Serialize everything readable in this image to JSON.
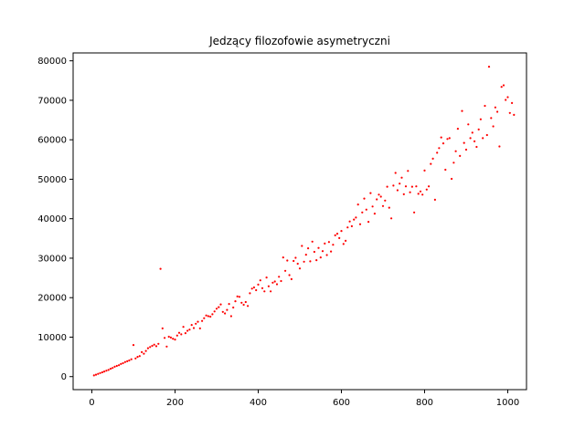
{
  "chart_data": {
    "type": "scatter",
    "title": "Jedzący filozofowie asymetryczni",
    "xlabel": "",
    "ylabel": "",
    "xlim": [
      -45,
      1045
    ],
    "ylim": [
      -3300,
      82000
    ],
    "xticks": [
      0,
      200,
      400,
      600,
      800,
      1000
    ],
    "yticks": [
      0,
      10000,
      20000,
      30000,
      40000,
      50000,
      60000,
      70000,
      80000
    ],
    "point_color": "#ff0000",
    "grid": false,
    "legend": "none",
    "series": [
      {
        "points": [
          [
            5,
            300
          ],
          [
            10,
            500
          ],
          [
            15,
            700
          ],
          [
            20,
            900
          ],
          [
            25,
            1100
          ],
          [
            30,
            1300
          ],
          [
            35,
            1500
          ],
          [
            40,
            1700
          ],
          [
            45,
            2000
          ],
          [
            50,
            2200
          ],
          [
            55,
            2500
          ],
          [
            60,
            2700
          ],
          [
            65,
            2900
          ],
          [
            70,
            3200
          ],
          [
            75,
            3400
          ],
          [
            80,
            3700
          ],
          [
            85,
            3900
          ],
          [
            90,
            4100
          ],
          [
            95,
            4400
          ],
          [
            100,
            8000
          ],
          [
            105,
            4600
          ],
          [
            110,
            5000
          ],
          [
            115,
            5200
          ],
          [
            120,
            6200
          ],
          [
            125,
            5800
          ],
          [
            130,
            6500
          ],
          [
            135,
            7200
          ],
          [
            140,
            7500
          ],
          [
            145,
            7800
          ],
          [
            150,
            8100
          ],
          [
            155,
            7700
          ],
          [
            160,
            8300
          ],
          [
            165,
            27300
          ],
          [
            170,
            12200
          ],
          [
            175,
            9800
          ],
          [
            180,
            7600
          ],
          [
            185,
            10100
          ],
          [
            190,
            9900
          ],
          [
            195,
            9600
          ],
          [
            200,
            9400
          ],
          [
            205,
            10400
          ],
          [
            210,
            11100
          ],
          [
            215,
            10700
          ],
          [
            220,
            12600
          ],
          [
            225,
            11000
          ],
          [
            230,
            11600
          ],
          [
            235,
            11900
          ],
          [
            240,
            13100
          ],
          [
            245,
            12300
          ],
          [
            250,
            13400
          ],
          [
            255,
            13900
          ],
          [
            260,
            12200
          ],
          [
            265,
            14100
          ],
          [
            270,
            14800
          ],
          [
            275,
            15500
          ],
          [
            280,
            15300
          ],
          [
            285,
            15200
          ],
          [
            290,
            15800
          ],
          [
            295,
            16500
          ],
          [
            300,
            17200
          ],
          [
            305,
            17600
          ],
          [
            310,
            18300
          ],
          [
            315,
            16400
          ],
          [
            320,
            16000
          ],
          [
            325,
            16900
          ],
          [
            330,
            18400
          ],
          [
            335,
            15300
          ],
          [
            340,
            17500
          ],
          [
            345,
            19100
          ],
          [
            350,
            20300
          ],
          [
            355,
            20200
          ],
          [
            360,
            18700
          ],
          [
            365,
            18200
          ],
          [
            370,
            18900
          ],
          [
            375,
            17900
          ],
          [
            380,
            21100
          ],
          [
            385,
            22300
          ],
          [
            390,
            22600
          ],
          [
            395,
            21900
          ],
          [
            400,
            23300
          ],
          [
            405,
            24400
          ],
          [
            410,
            22400
          ],
          [
            415,
            21600
          ],
          [
            420,
            25100
          ],
          [
            425,
            22900
          ],
          [
            430,
            21600
          ],
          [
            435,
            23800
          ],
          [
            440,
            24100
          ],
          [
            445,
            23400
          ],
          [
            450,
            25300
          ],
          [
            455,
            24200
          ],
          [
            460,
            30200
          ],
          [
            465,
            26800
          ],
          [
            470,
            29400
          ],
          [
            475,
            25700
          ],
          [
            480,
            24700
          ],
          [
            485,
            29300
          ],
          [
            490,
            30100
          ],
          [
            495,
            28600
          ],
          [
            500,
            27400
          ],
          [
            505,
            33100
          ],
          [
            510,
            29100
          ],
          [
            515,
            30900
          ],
          [
            520,
            32500
          ],
          [
            525,
            29200
          ],
          [
            530,
            34200
          ],
          [
            535,
            31600
          ],
          [
            540,
            29500
          ],
          [
            545,
            32600
          ],
          [
            550,
            30200
          ],
          [
            555,
            31800
          ],
          [
            560,
            33700
          ],
          [
            565,
            30800
          ],
          [
            570,
            34100
          ],
          [
            575,
            31700
          ],
          [
            580,
            33400
          ],
          [
            585,
            35800
          ],
          [
            590,
            36200
          ],
          [
            595,
            35100
          ],
          [
            600,
            36900
          ],
          [
            605,
            33600
          ],
          [
            610,
            34400
          ],
          [
            615,
            37800
          ],
          [
            620,
            39300
          ],
          [
            625,
            38100
          ],
          [
            630,
            39800
          ],
          [
            635,
            40300
          ],
          [
            640,
            43600
          ],
          [
            645,
            38600
          ],
          [
            650,
            41600
          ],
          [
            655,
            45100
          ],
          [
            660,
            42300
          ],
          [
            665,
            39200
          ],
          [
            670,
            46500
          ],
          [
            675,
            43100
          ],
          [
            680,
            41300
          ],
          [
            685,
            44900
          ],
          [
            690,
            46100
          ],
          [
            695,
            45600
          ],
          [
            700,
            43200
          ],
          [
            705,
            44600
          ],
          [
            710,
            48100
          ],
          [
            715,
            42800
          ],
          [
            720,
            40100
          ],
          [
            725,
            48400
          ],
          [
            730,
            51600
          ],
          [
            735,
            47200
          ],
          [
            740,
            48900
          ],
          [
            745,
            50400
          ],
          [
            750,
            46200
          ],
          [
            755,
            48200
          ],
          [
            760,
            52100
          ],
          [
            765,
            46700
          ],
          [
            770,
            48100
          ],
          [
            775,
            41600
          ],
          [
            780,
            48200
          ],
          [
            785,
            46300
          ],
          [
            790,
            46900
          ],
          [
            795,
            46100
          ],
          [
            800,
            52200
          ],
          [
            805,
            47400
          ],
          [
            810,
            48200
          ],
          [
            815,
            53900
          ],
          [
            820,
            55200
          ],
          [
            825,
            44800
          ],
          [
            830,
            56700
          ],
          [
            835,
            57900
          ],
          [
            840,
            60600
          ],
          [
            845,
            59100
          ],
          [
            850,
            52400
          ],
          [
            855,
            60200
          ],
          [
            860,
            60400
          ],
          [
            865,
            50100
          ],
          [
            870,
            54200
          ],
          [
            875,
            57100
          ],
          [
            880,
            62800
          ],
          [
            885,
            55900
          ],
          [
            890,
            67300
          ],
          [
            895,
            59200
          ],
          [
            900,
            57500
          ],
          [
            905,
            63900
          ],
          [
            910,
            60400
          ],
          [
            915,
            61800
          ],
          [
            920,
            59600
          ],
          [
            925,
            58200
          ],
          [
            930,
            62600
          ],
          [
            935,
            65200
          ],
          [
            940,
            60400
          ],
          [
            945,
            68600
          ],
          [
            950,
            61200
          ],
          [
            955,
            78500
          ],
          [
            960,
            65500
          ],
          [
            965,
            63400
          ],
          [
            970,
            68200
          ],
          [
            975,
            67100
          ],
          [
            980,
            58300
          ],
          [
            985,
            73400
          ],
          [
            990,
            73800
          ],
          [
            995,
            70100
          ],
          [
            1000,
            70800
          ],
          [
            1005,
            66800
          ],
          [
            1010,
            69300
          ],
          [
            1015,
            66300
          ]
        ]
      }
    ]
  }
}
